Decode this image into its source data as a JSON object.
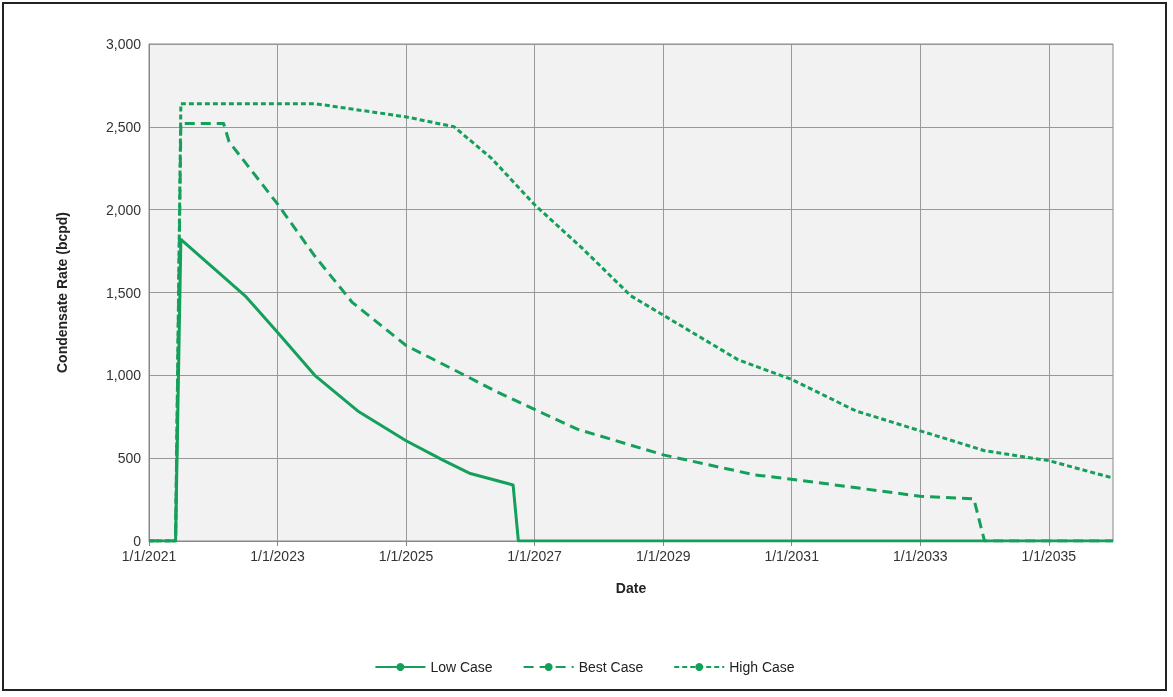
{
  "chart_data": {
    "type": "line",
    "xlabel": "Date",
    "ylabel": "Condensate Rate (bcpd)",
    "xlim": [
      "2021-01-01",
      "2036-01-01"
    ],
    "xticks": [
      {
        "value": "2021-01-01",
        "label": "1/1/2021"
      },
      {
        "value": "2023-01-01",
        "label": "1/1/2023"
      },
      {
        "value": "2025-01-01",
        "label": "1/1/2025"
      },
      {
        "value": "2027-01-01",
        "label": "1/1/2027"
      },
      {
        "value": "2029-01-01",
        "label": "1/1/2029"
      },
      {
        "value": "2031-01-01",
        "label": "1/1/2031"
      },
      {
        "value": "2033-01-01",
        "label": "1/1/2033"
      },
      {
        "value": "2035-01-01",
        "label": "1/1/2035"
      }
    ],
    "ylim": [
      0,
      3000
    ],
    "yticks": [
      0,
      500,
      {
        "value": 1000,
        "label": "1,000"
      },
      {
        "value": 1500,
        "label": "1,500"
      },
      {
        "value": 2000,
        "label": "2,000"
      },
      {
        "value": 2500,
        "label": "2,500"
      },
      {
        "value": 3000,
        "label": "3,000"
      }
    ],
    "grid": true,
    "legend": "bottom",
    "marker": "none",
    "series": [
      {
        "name": "Low Case",
        "color": "#14a05a",
        "line_style": "solid",
        "x": [
          "2021-01",
          "2021-06",
          "2021-07",
          "2022-02",
          "2022-07",
          "2023-01",
          "2023-08",
          "2024-04",
          "2025-01",
          "2025-08",
          "2026-01",
          "2026-09",
          "2026-10",
          "2036-01"
        ],
        "values": [
          0,
          0,
          1820,
          1620,
          1480,
          1260,
          1000,
          785,
          605,
          487,
          407,
          338,
          0,
          0
        ]
      },
      {
        "name": "Best Case",
        "color": "#14a05a",
        "line_style": "dashed",
        "x": [
          "2021-01",
          "2021-06",
          "2021-07",
          "2022-03",
          "2022-04",
          "2023-01",
          "2023-08",
          "2024-03",
          "2025-01",
          "2025-12",
          "2026-06",
          "2027-03",
          "2027-09",
          "2029-01",
          "2030-06",
          "2031-03",
          "2033-01",
          "2033-11",
          "2034-01",
          "2036-01"
        ],
        "values": [
          0,
          0,
          2520,
          2520,
          2410,
          2035,
          1720,
          1440,
          1180,
          1000,
          900,
          765,
          675,
          520,
          400,
          365,
          270,
          255,
          0,
          0
        ]
      },
      {
        "name": "High Case",
        "color": "#14a05a",
        "line_style": "dotted",
        "x": [
          "2021-01",
          "2021-06",
          "2021-07",
          "2023-08",
          "2025-01",
          "2025-10",
          "2026-05",
          "2027-01",
          "2027-10",
          "2028-07",
          "2030-03",
          "2031-01",
          "2032-01",
          "2033-01",
          "2034-01",
          "2035-01",
          "2036-01"
        ],
        "values": [
          0,
          0,
          2640,
          2640,
          2560,
          2500,
          2310,
          2030,
          1765,
          1480,
          1095,
          975,
          785,
          665,
          545,
          485,
          380
        ]
      }
    ]
  }
}
